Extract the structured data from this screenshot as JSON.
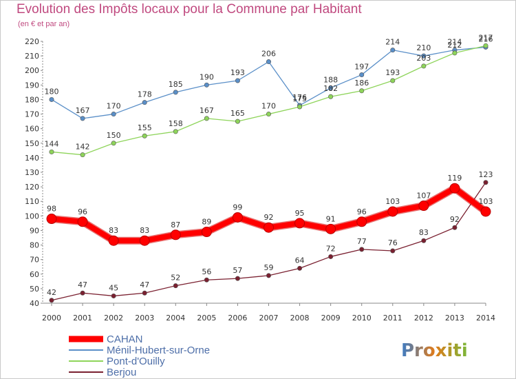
{
  "header": {
    "title": "Evolution des Impôts locaux pour la Commune par Habitant",
    "subtitle": "(en € et par an)"
  },
  "logo": {
    "text": "Proxiti"
  },
  "chart_data": {
    "type": "line",
    "title": "Evolution des Impôts locaux pour la Commune par Habitant",
    "subtitle": "(en € et par an)",
    "x": [
      2000,
      2001,
      2002,
      2003,
      2004,
      2005,
      2006,
      2007,
      2008,
      2009,
      2010,
      2011,
      2012,
      2013,
      2014
    ],
    "ylim": [
      40,
      220
    ],
    "yticks": [
      40,
      50,
      60,
      70,
      80,
      90,
      100,
      110,
      120,
      130,
      140,
      150,
      160,
      170,
      180,
      190,
      200,
      210,
      220
    ],
    "grid": false,
    "legend": "bottom-left",
    "series": [
      {
        "name": "CAHAN",
        "color": "#ff0000",
        "values": [
          98,
          96,
          83,
          83,
          87,
          89,
          99,
          92,
          95,
          91,
          96,
          103,
          107,
          119,
          103
        ]
      },
      {
        "name": "Ménil-Hubert-sur-Orne",
        "color": "#5a8fc8",
        "values": [
          180,
          167,
          170,
          178,
          185,
          190,
          193,
          206,
          176,
          188,
          197,
          214,
          210,
          214,
          216
        ]
      },
      {
        "name": "Pont-d'Ouilly",
        "color": "#8ed45a",
        "values": [
          144,
          142,
          150,
          155,
          158,
          167,
          165,
          170,
          175,
          182,
          186,
          193,
          203,
          212,
          217
        ]
      },
      {
        "name": "Berjou",
        "color": "#7a2030",
        "values": [
          42,
          47,
          45,
          47,
          52,
          56,
          57,
          59,
          64,
          72,
          77,
          76,
          83,
          92,
          123
        ]
      }
    ]
  }
}
